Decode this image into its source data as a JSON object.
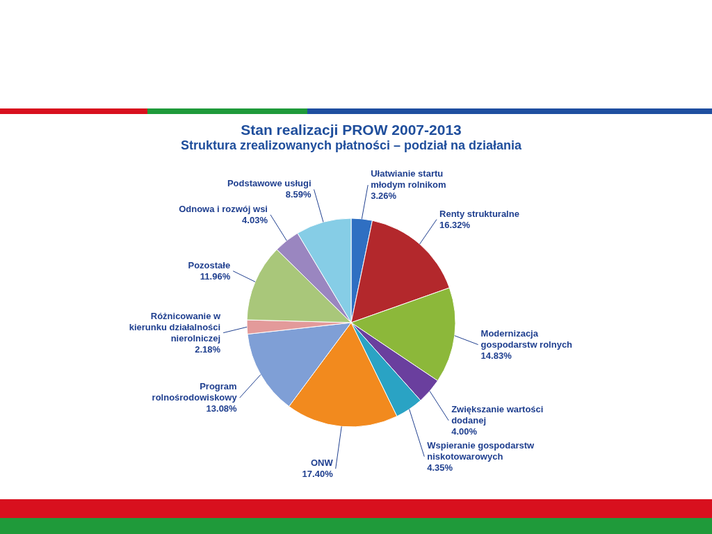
{
  "chart_data": {
    "type": "pie",
    "title": "Stan realizacji PROW 2007-2013",
    "subtitle": "Struktura zrealizowanych płatności – podział na działania",
    "categories": [
      "Ułatwianie startu młodym rolnikom",
      "Renty strukturalne",
      "Modernizacja gospodarstw rolnych",
      "Zwiększanie wartości dodanej",
      "Wspieranie gospodarstw niskotowarowych",
      "ONW",
      "Program rolnośrodowiskowy",
      "Różnicowanie w kierunku działalności nierolniczej",
      "Pozostałe",
      "Odnowa i rozwój wsi",
      "Podstawowe usługi"
    ],
    "values": [
      3.26,
      16.32,
      14.83,
      4.0,
      4.35,
      17.4,
      13.08,
      2.18,
      11.96,
      4.03,
      8.59
    ],
    "value_labels": [
      "3.26%",
      "16.32%",
      "14.83%",
      "4.00%",
      "4.35%",
      "17.40%",
      "13.08%",
      "2.18%",
      "11.96%",
      "4.03%",
      "8.59%"
    ],
    "colors": [
      "#2f6fc2",
      "#b3282c",
      "#8cb83a",
      "#6a3f9e",
      "#2aa3c4",
      "#f28a1e",
      "#7f9fd6",
      "#e39a9a",
      "#a9c77a",
      "#9a86c0",
      "#86cde6"
    ]
  }
}
